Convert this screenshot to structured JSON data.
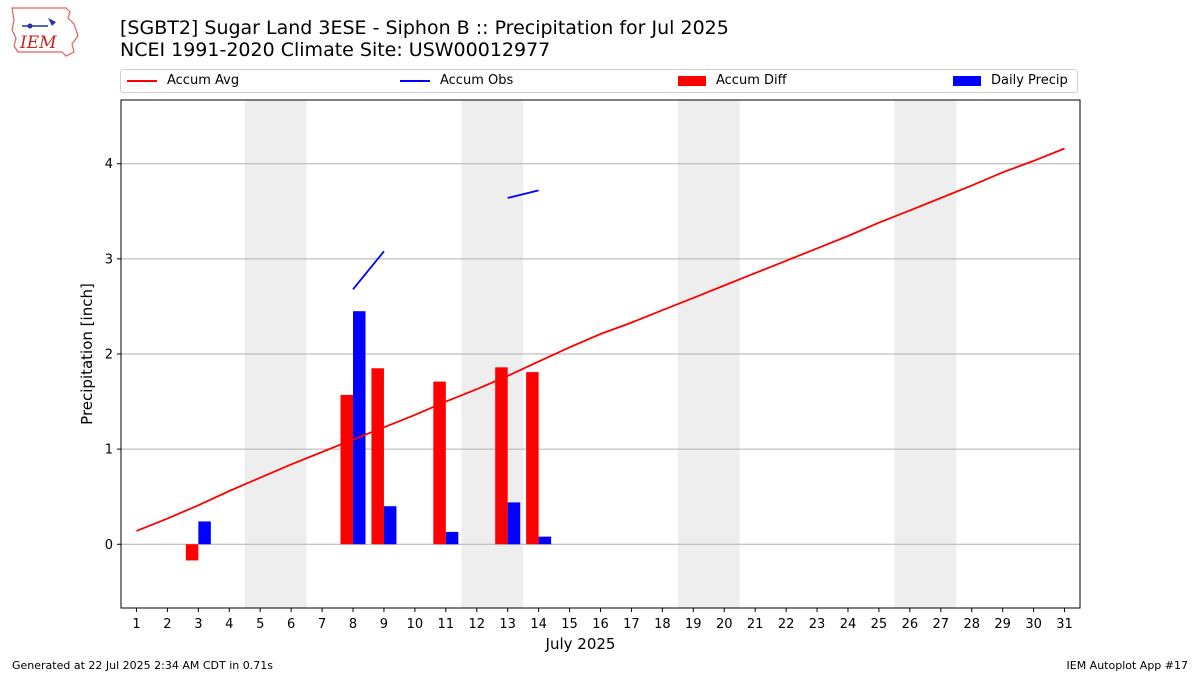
{
  "header": {
    "logo_text": "IEM",
    "title_line1": "[SGBT2] Sugar Land 3ESE - Siphon B :: Precipitation for Jul 2025",
    "title_line2": "NCEI 1991-2020 Climate Site: USW00012977"
  },
  "footer": {
    "generated": "Generated at 22 Jul 2025 2:34 AM CDT in 0.71s",
    "app": "IEM Autoplot App #17"
  },
  "colors": {
    "accum_avg": "#ff0000",
    "accum_obs": "#0000ff",
    "accum_diff": "#ff0000",
    "daily_precip": "#0000ff",
    "weekend_shade": "#eeeeee",
    "grid": "#b0b0b0"
  },
  "chart_data": {
    "type": "bar",
    "xlabel": "July 2025",
    "ylabel": "Precipitation [inch]",
    "xlim": [
      0.5,
      31.5
    ],
    "ylim": [
      -0.67,
      4.67
    ],
    "yticks": [
      0,
      1,
      2,
      3,
      4
    ],
    "grid": "horizontal",
    "legend_position": "top",
    "days": [
      1,
      2,
      3,
      4,
      5,
      6,
      7,
      8,
      9,
      10,
      11,
      12,
      13,
      14,
      15,
      16,
      17,
      18,
      19,
      20,
      21,
      22,
      23,
      24,
      25,
      26,
      27,
      28,
      29,
      30,
      31
    ],
    "weekend_shading": [
      [
        5,
        6
      ],
      [
        12,
        13
      ],
      [
        19,
        20
      ],
      [
        26,
        27
      ]
    ],
    "series": [
      {
        "name": "Accum Avg",
        "kind": "line",
        "x": [
          1,
          2,
          3,
          4,
          5,
          6,
          7,
          8,
          9,
          10,
          11,
          12,
          13,
          14,
          15,
          16,
          17,
          18,
          19,
          20,
          21,
          22,
          23,
          24,
          25,
          26,
          27,
          28,
          29,
          30,
          31
        ],
        "values": [
          0.14,
          0.27,
          0.41,
          0.56,
          0.7,
          0.84,
          0.97,
          1.1,
          1.23,
          1.36,
          1.5,
          1.63,
          1.77,
          1.92,
          2.07,
          2.21,
          2.33,
          2.46,
          2.59,
          2.72,
          2.85,
          2.98,
          3.11,
          3.24,
          3.38,
          3.51,
          3.64,
          3.77,
          3.91,
          4.03,
          4.16
        ]
      },
      {
        "name": "Accum Obs",
        "kind": "line",
        "x": [
          8,
          9,
          13,
          14
        ],
        "values": [
          2.68,
          3.08,
          3.64,
          3.72
        ],
        "segments": [
          [
            8,
            9
          ],
          [
            13,
            14
          ]
        ]
      },
      {
        "name": "Accum Diff",
        "kind": "bar",
        "x": [
          3,
          8,
          9,
          11,
          13,
          14
        ],
        "values": [
          -0.17,
          1.57,
          1.85,
          1.71,
          1.86,
          1.81
        ]
      },
      {
        "name": "Daily Precip",
        "kind": "bar",
        "x": [
          3,
          8,
          9,
          11,
          13,
          14
        ],
        "values": [
          0.24,
          2.45,
          0.4,
          0.13,
          0.44,
          0.08
        ]
      }
    ]
  }
}
